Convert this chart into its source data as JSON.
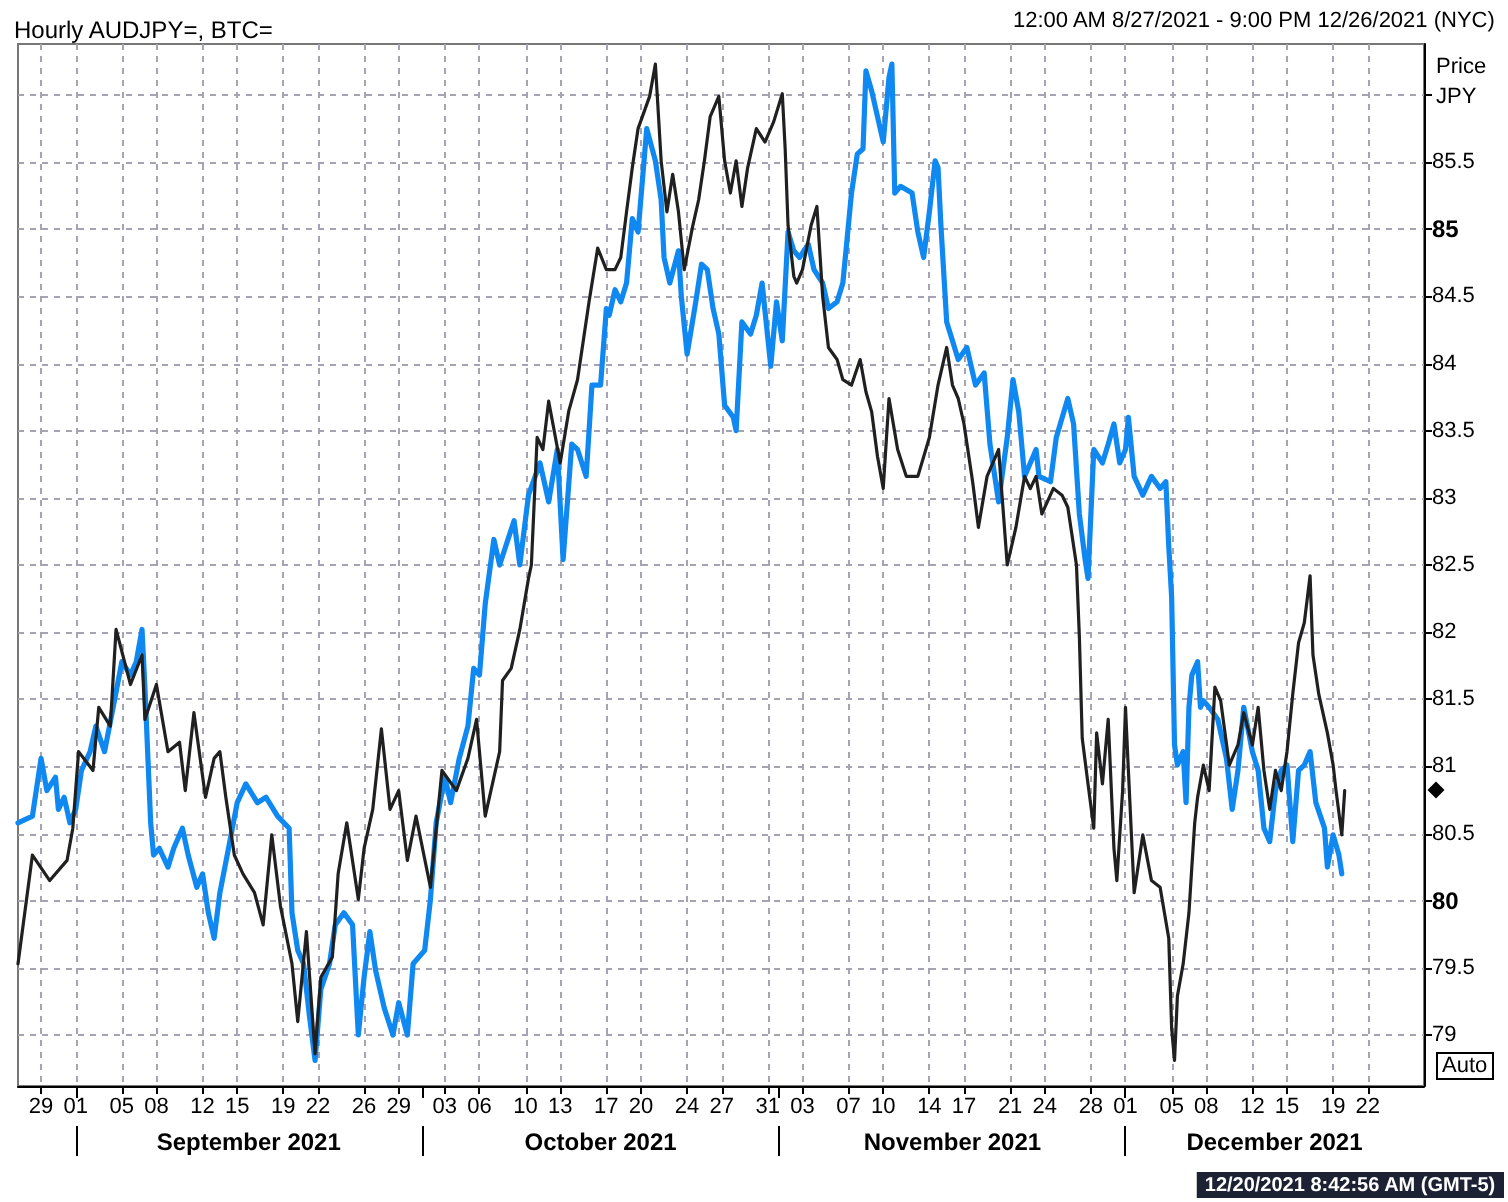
{
  "chart_data": {
    "type": "line",
    "title": "Hourly AUDJPY=, BTC=",
    "ylabel": "Price JPY",
    "annotations": [
      "12:00 AM 8/27/2021 - 9:00 PM 12/26/2021 (NYC)",
      "12/20/2021 8:42:56 AM (GMT-5)",
      "Auto"
    ],
    "xlim": [
      "2021-08-27T00:00",
      "2021-12-26T21:00"
    ],
    "xticks": [
      {
        "value": "2021-08-29",
        "label": "29"
      },
      {
        "value": "2021-09-01",
        "label": "01"
      },
      {
        "value": "2021-09-05",
        "label": "05"
      },
      {
        "value": "2021-09-08",
        "label": "08"
      },
      {
        "value": "2021-09-12",
        "label": "12"
      },
      {
        "value": "2021-09-15",
        "label": "15"
      },
      {
        "value": "2021-09-19",
        "label": "19"
      },
      {
        "value": "2021-09-22",
        "label": "22"
      },
      {
        "value": "2021-09-26",
        "label": "26"
      },
      {
        "value": "2021-09-29",
        "label": "29"
      },
      {
        "value": "2021-10-03",
        "label": "03"
      },
      {
        "value": "2021-10-06",
        "label": "06"
      },
      {
        "value": "2021-10-10",
        "label": "10"
      },
      {
        "value": "2021-10-13",
        "label": "13"
      },
      {
        "value": "2021-10-17",
        "label": "17"
      },
      {
        "value": "2021-10-20",
        "label": "20"
      },
      {
        "value": "2021-10-24",
        "label": "24"
      },
      {
        "value": "2021-10-27",
        "label": "27"
      },
      {
        "value": "2021-10-31",
        "label": "31"
      },
      {
        "value": "2021-11-03",
        "label": "03"
      },
      {
        "value": "2021-11-07",
        "label": "07"
      },
      {
        "value": "2021-11-10",
        "label": "10"
      },
      {
        "value": "2021-11-14",
        "label": "14"
      },
      {
        "value": "2021-11-17",
        "label": "17"
      },
      {
        "value": "2021-11-21",
        "label": "21"
      },
      {
        "value": "2021-11-24",
        "label": "24"
      },
      {
        "value": "2021-11-28",
        "label": "28"
      },
      {
        "value": "2021-12-01",
        "label": "01"
      },
      {
        "value": "2021-12-05",
        "label": "05"
      },
      {
        "value": "2021-12-08",
        "label": "08"
      },
      {
        "value": "2021-12-12",
        "label": "12"
      },
      {
        "value": "2021-12-15",
        "label": "15"
      },
      {
        "value": "2021-12-19",
        "label": "19"
      },
      {
        "value": "2021-12-22",
        "label": "22"
      }
    ],
    "x2lim": [
      "2021-08-27T00:00",
      "2021-12-26T21:00"
    ],
    "x2ticks": [
      {
        "value": "2021-09-01",
        "label": null
      },
      {
        "value": "2021-09-16",
        "label": "September 2021"
      },
      {
        "value": "2021-10-01",
        "label": null
      },
      {
        "value": "2021-10-16T12:00",
        "label": "October 2021"
      },
      {
        "value": "2021-11-01",
        "label": null
      },
      {
        "value": "2021-11-16",
        "label": "November 2021"
      },
      {
        "value": "2021-12-01",
        "label": null
      },
      {
        "value": "2021-12-13T22:00",
        "label": "December 2021"
      }
    ],
    "ylim": [
      78.62,
      86.38
    ],
    "yticks": [
      79,
      79.5,
      80,
      80.5,
      81,
      81.5,
      82,
      82.5,
      83,
      83.5,
      84,
      84.5,
      85,
      85.5,
      {
        "value": 86,
        "label": null
      }
    ],
    "grid": true,
    "series": [
      {
        "color": "#202020",
        "x": [
          "2021-08-27T00:00",
          "2021-08-28T06:00",
          "2021-08-29T18:00",
          "2021-08-31T06:00",
          "2021-08-31T18:00",
          "2021-09-01T06:00",
          "2021-09-02T12:00",
          "2021-09-03T00:00",
          "2021-09-04T00:00",
          "2021-09-04T12:00",
          "2021-09-05T18:00",
          "2021-09-06T18:00",
          "2021-09-07T00:00",
          "2021-09-08T00:00",
          "2021-09-09T00:00",
          "2021-09-10T00:00",
          "2021-09-10T12:00",
          "2021-09-11T06:00",
          "2021-09-12T06:00",
          "2021-09-13T00:00",
          "2021-09-13T12:00",
          "2021-09-14T00:00",
          "2021-09-14T18:00",
          "2021-09-15T12:00",
          "2021-09-16T12:00",
          "2021-09-17T06:00",
          "2021-09-18T00:00",
          "2021-09-18T18:00",
          "2021-09-19T18:00",
          "2021-09-20T06:00",
          "2021-09-21T00:00",
          "2021-09-21T18:00",
          "2021-09-22T06:00",
          "2021-09-23T06:00",
          "2021-09-23T18:00",
          "2021-09-24T12:00",
          "2021-09-25T12:00",
          "2021-09-26T00:00",
          "2021-09-26T18:00",
          "2021-09-27T12:00",
          "2021-09-28T06:00",
          "2021-09-29T00:00",
          "2021-09-29T18:00",
          "2021-09-30T12:00",
          "2021-10-01T18:00",
          "2021-10-02T18:00",
          "2021-10-04T00:00",
          "2021-10-05T00:00",
          "2021-10-05T18:00",
          "2021-10-06T12:00",
          "2021-10-07T18:00",
          "2021-10-08T00:00",
          "2021-10-08T18:00",
          "2021-10-09T12:00",
          "2021-10-10T06:00",
          "2021-10-10T12:00",
          "2021-10-11T00:00",
          "2021-10-11T12:00",
          "2021-10-12T00:00",
          "2021-10-13T00:00",
          "2021-10-13T18:00",
          "2021-10-14T12:00",
          "2021-10-15T12:00",
          "2021-10-16T06:00",
          "2021-10-17T00:00",
          "2021-10-17T18:00",
          "2021-10-18T06:00",
          "2021-10-18T18:00",
          "2021-10-19T06:00",
          "2021-10-19T18:00",
          "2021-10-20T18:00",
          "2021-10-21T06:00",
          "2021-10-21T18:00",
          "2021-10-22T06:00",
          "2021-10-22T18:00",
          "2021-10-23T06:00",
          "2021-10-23T18:00",
          "2021-10-24T12:00",
          "2021-10-25T00:00",
          "2021-10-25T12:00",
          "2021-10-26T00:00",
          "2021-10-26T18:00",
          "2021-10-27T06:00",
          "2021-10-27T18:00",
          "2021-10-28T06:00",
          "2021-10-28T18:00",
          "2021-10-29T06:00",
          "2021-10-30T00:00",
          "2021-10-30T18:00",
          "2021-10-31T12:00",
          "2021-11-01T06:00",
          "2021-11-01T12:00",
          "2021-11-01T18:00",
          "2021-11-02T06:00",
          "2021-11-02T12:00",
          "2021-11-03T00:00",
          "2021-11-03T18:00",
          "2021-11-04T06:00",
          "2021-11-04T18:00",
          "2021-11-05T06:00",
          "2021-11-06T00:00",
          "2021-11-06T12:00",
          "2021-11-07T06:00",
          "2021-11-08T00:00",
          "2021-11-08T12:00",
          "2021-11-09T00:00",
          "2021-11-09T12:00",
          "2021-11-10T00:00",
          "2021-11-10T12:00",
          "2021-11-11T06:00",
          "2021-11-12T00:00",
          "2021-11-13T00:00",
          "2021-11-14T00:00",
          "2021-11-14T18:00",
          "2021-11-15T12:00",
          "2021-11-16T00:00",
          "2021-11-16T12:00",
          "2021-11-17T00:00",
          "2021-11-17T18:00",
          "2021-11-18T06:00",
          "2021-11-19T00:00",
          "2021-11-20T00:00",
          "2021-11-20T18:00",
          "2021-11-21T12:00",
          "2021-11-22T06:00",
          "2021-11-22T18:00",
          "2021-11-23T06:00",
          "2021-11-23T18:00",
          "2021-11-24T18:00",
          "2021-11-25T12:00",
          "2021-11-26T00:00",
          "2021-11-26T18:00",
          "2021-11-27T00:00",
          "2021-11-27T06:00",
          "2021-11-27T18:00",
          "2021-11-28T06:00",
          "2021-11-28T12:00",
          "2021-11-29T00:00",
          "2021-11-29T12:00",
          "2021-11-30T00:00",
          "2021-11-30T06:00",
          "2021-11-30T18:00",
          "2021-12-01T00:00",
          "2021-12-01T06:00",
          "2021-12-01T18:00",
          "2021-12-02T12:00",
          "2021-12-03T06:00",
          "2021-12-04T00:00",
          "2021-12-04T18:00",
          "2021-12-05T00:00",
          "2021-12-05T06:00",
          "2021-12-05T12:00",
          "2021-12-06T00:00",
          "2021-12-06T12:00",
          "2021-12-06T18:00",
          "2021-12-07T00:00",
          "2021-12-07T06:00",
          "2021-12-07T18:00",
          "2021-12-08T06:00",
          "2021-12-08T18:00",
          "2021-12-09T06:00",
          "2021-12-10T00:00",
          "2021-12-10T18:00",
          "2021-12-11T06:00",
          "2021-12-12T00:00",
          "2021-12-12T12:00",
          "2021-12-13T00:00",
          "2021-12-13T12:00",
          "2021-12-14T00:00",
          "2021-12-14T12:00",
          "2021-12-15T00:00",
          "2021-12-15T12:00",
          "2021-12-16T00:00",
          "2021-12-16T12:00",
          "2021-12-17T00:00",
          "2021-12-17T06:00",
          "2021-12-17T18:00",
          "2021-12-18T12:00",
          "2021-12-19T00:00",
          "2021-12-19T06:00",
          "2021-12-19T18:00",
          "2021-12-20T00:00"
        ],
        "values": [
          79.53,
          80.34,
          80.15,
          80.3,
          80.54,
          81.11,
          80.97,
          81.44,
          81.3,
          82.02,
          81.61,
          81.83,
          81.35,
          81.61,
          81.11,
          81.18,
          80.82,
          81.4,
          80.77,
          81.06,
          81.11,
          80.78,
          80.34,
          80.2,
          80.06,
          79.82,
          80.49,
          79.96,
          79.53,
          79.1,
          79.77,
          78.86,
          79.43,
          79.58,
          80.2,
          80.58,
          80.01,
          80.39,
          80.68,
          81.28,
          80.68,
          80.82,
          80.3,
          80.63,
          80.1,
          80.97,
          80.82,
          81.06,
          81.35,
          80.63,
          81.11,
          81.64,
          81.73,
          82.02,
          82.4,
          82.5,
          83.45,
          83.36,
          83.72,
          83.26,
          83.65,
          83.88,
          84.46,
          84.86,
          84.7,
          84.7,
          84.79,
          85.13,
          85.46,
          85.75,
          85.99,
          86.23,
          85.51,
          85.13,
          85.41,
          85.13,
          84.7,
          85.03,
          85.22,
          85.51,
          85.84,
          85.99,
          85.51,
          85.27,
          85.51,
          85.17,
          85.46,
          85.75,
          85.65,
          85.8,
          86.01,
          85.6,
          85.03,
          84.65,
          84.6,
          84.7,
          85.03,
          85.17,
          84.5,
          84.12,
          84.03,
          83.88,
          83.84,
          84.03,
          83.79,
          83.64,
          83.31,
          83.07,
          83.74,
          83.36,
          83.16,
          83.16,
          83.45,
          83.84,
          84.12,
          83.84,
          83.74,
          83.55,
          83.12,
          82.78,
          83.16,
          83.36,
          82.5,
          82.78,
          83.16,
          83.07,
          83.16,
          82.88,
          83.07,
          83.02,
          82.93,
          82.5,
          81.97,
          81.21,
          80.87,
          80.54,
          81.25,
          80.87,
          81.35,
          80.39,
          80.15,
          80.82,
          81.44,
          80.97,
          80.06,
          80.49,
          80.15,
          80.1,
          79.72,
          79.05,
          78.81,
          79.29,
          79.53,
          79.91,
          80.25,
          80.58,
          80.77,
          81.01,
          80.82,
          81.59,
          81.49,
          81.01,
          81.16,
          81.4,
          81.16,
          81.44,
          80.97,
          80.68,
          80.97,
          80.82,
          81.11,
          81.54,
          81.92,
          82.07,
          82.42,
          81.83,
          81.54,
          81.25,
          81.01,
          80.82,
          80.49,
          80.82
        ]
      },
      {
        "color": "#0f88f2",
        "x": [
          "2021-08-27T00:00",
          "2021-08-28T06:00",
          "2021-08-29T00:00",
          "2021-08-29T12:00",
          "2021-08-30T06:00",
          "2021-08-30T12:00",
          "2021-08-31T00:00",
          "2021-08-31T12:00",
          "2021-09-01T00:00",
          "2021-09-01T12:00",
          "2021-09-02T06:00",
          "2021-09-02T18:00",
          "2021-09-03T12:00",
          "2021-09-04T06:00",
          "2021-09-05T00:00",
          "2021-09-05T18:00",
          "2021-09-06T06:00",
          "2021-09-06T18:00",
          "2021-09-07T00:00",
          "2021-09-07T12:00",
          "2021-09-07T18:00",
          "2021-09-08T06:00",
          "2021-09-09T00:00",
          "2021-09-09T12:00",
          "2021-09-10T06:00",
          "2021-09-10T18:00",
          "2021-09-11T12:00",
          "2021-09-12T00:00",
          "2021-09-12T12:00",
          "2021-09-13T00:00",
          "2021-09-13T12:00",
          "2021-09-14T06:00",
          "2021-09-15T00:00",
          "2021-09-15T18:00",
          "2021-09-16T18:00",
          "2021-09-17T12:00",
          "2021-09-18T12:00",
          "2021-09-19T12:00",
          "2021-09-19T18:00",
          "2021-09-20T06:00",
          "2021-09-20T18:00",
          "2021-09-21T06:00",
          "2021-09-21T18:00",
          "2021-09-22T06:00",
          "2021-09-23T00:00",
          "2021-09-23T12:00",
          "2021-09-24T06:00",
          "2021-09-25T00:00",
          "2021-09-25T12:00",
          "2021-09-26T00:00",
          "2021-09-26T12:00",
          "2021-09-27T00:00",
          "2021-09-27T18:00",
          "2021-09-28T12:00",
          "2021-09-29T00:00",
          "2021-09-29T18:00",
          "2021-09-30T06:00",
          "2021-10-01T06:00",
          "2021-10-01T18:00",
          "2021-10-02T06:00",
          "2021-10-03T00:00",
          "2021-10-03T12:00",
          "2021-10-04T06:00",
          "2021-10-05T00:00",
          "2021-10-05T12:00",
          "2021-10-06T00:00",
          "2021-10-06T12:00",
          "2021-10-07T06:00",
          "2021-10-07T18:00",
          "2021-10-09T00:00",
          "2021-10-09T12:00",
          "2021-10-10T06:00",
          "2021-10-11T06:00",
          "2021-10-12T00:00",
          "2021-10-12T18:00",
          "2021-10-13T06:00",
          "2021-10-14T00:00",
          "2021-10-14T12:00",
          "2021-10-15T06:00",
          "2021-10-15T18:00",
          "2021-10-16T12:00",
          "2021-10-17T00:00",
          "2021-10-17T06:00",
          "2021-10-17T18:00",
          "2021-10-18T06:00",
          "2021-10-18T18:00",
          "2021-10-19T06:00",
          "2021-10-19T18:00",
          "2021-10-20T12:00",
          "2021-10-21T06:00",
          "2021-10-21T18:00",
          "2021-10-22T00:00",
          "2021-10-22T12:00",
          "2021-10-23T06:00",
          "2021-10-23T12:00",
          "2021-10-24T00:00",
          "2021-10-24T18:00",
          "2021-10-25T06:00",
          "2021-10-25T18:00",
          "2021-10-26T06:00",
          "2021-10-26T18:00",
          "2021-10-27T06:00",
          "2021-10-28T00:00",
          "2021-10-28T06:00",
          "2021-10-28T18:00",
          "2021-10-29T12:00",
          "2021-10-30T00:00",
          "2021-10-30T12:00",
          "2021-10-31T06:00",
          "2021-10-31T18:00",
          "2021-11-01T06:00",
          "2021-11-01T18:00",
          "2021-11-02T06:00",
          "2021-11-02T18:00",
          "2021-11-03T12:00",
          "2021-11-04T00:00",
          "2021-11-04T18:00",
          "2021-11-05T06:00",
          "2021-11-06T00:00",
          "2021-11-06T12:00",
          "2021-11-07T06:00",
          "2021-11-07T18:00",
          "2021-11-08T06:00",
          "2021-11-08T12:00",
          "2021-11-09T00:00",
          "2021-11-09T12:00",
          "2021-11-10T00:00",
          "2021-11-10T12:00",
          "2021-11-10T18:00",
          "2021-11-11T00:00",
          "2021-11-11T12:00",
          "2021-11-12T12:00",
          "2021-11-13T00:00",
          "2021-11-13T12:00",
          "2021-11-14T00:00",
          "2021-11-14T12:00",
          "2021-11-14T18:00",
          "2021-11-15T00:00",
          "2021-11-15T12:00",
          "2021-11-16T00:00",
          "2021-11-16T12:00",
          "2021-11-17T06:00",
          "2021-11-18T00:00",
          "2021-11-18T18:00",
          "2021-11-19T06:00",
          "2021-11-20T00:00",
          "2021-11-20T18:00",
          "2021-11-21T06:00",
          "2021-11-21T18:00",
          "2021-11-22T06:00",
          "2021-11-22T18:00",
          "2021-11-23T06:00",
          "2021-11-23T12:00",
          "2021-11-24T12:00",
          "2021-11-25T00:00",
          "2021-11-26T00:00",
          "2021-11-26T12:00",
          "2021-11-27T00:00",
          "2021-11-27T12:00",
          "2021-11-27T18:00",
          "2021-11-28T06:00",
          "2021-11-29T00:00",
          "2021-11-29T12:00",
          "2021-11-30T00:00",
          "2021-11-30T12:00",
          "2021-12-01T00:00",
          "2021-12-01T06:00",
          "2021-12-01T18:00",
          "2021-12-02T12:00",
          "2021-12-03T06:00",
          "2021-12-04T00:00",
          "2021-12-04T12:00",
          "2021-12-04T18:00",
          "2021-12-05T00:00",
          "2021-12-05T06:00",
          "2021-12-05T12:00",
          "2021-12-06T00:00",
          "2021-12-06T06:00",
          "2021-12-06T12:00",
          "2021-12-06T18:00",
          "2021-12-07T06:00",
          "2021-12-07T12:00",
          "2021-12-07T18:00",
          "2021-12-08T06:00",
          "2021-12-09T00:00",
          "2021-12-09T18:00",
          "2021-12-10T06:00",
          "2021-12-10T18:00",
          "2021-12-11T06:00",
          "2021-12-12T00:00",
          "2021-12-12T12:00",
          "2021-12-13T00:00",
          "2021-12-13T12:00",
          "2021-12-14T00:00",
          "2021-12-14T12:00",
          "2021-12-15T00:00",
          "2021-12-15T12:00",
          "2021-12-16T00:00",
          "2021-12-16T12:00",
          "2021-12-17T00:00",
          "2021-12-17T12:00",
          "2021-12-18T06:00",
          "2021-12-18T12:00",
          "2021-12-19T00:00",
          "2021-12-19T12:00",
          "2021-12-19T18:00"
        ],
        "values": [
          80.58,
          80.63,
          81.06,
          80.82,
          80.92,
          80.68,
          80.77,
          80.58,
          80.68,
          80.97,
          81.11,
          81.3,
          81.11,
          81.44,
          81.78,
          81.68,
          81.78,
          82.02,
          81.59,
          80.58,
          80.34,
          80.39,
          80.25,
          80.39,
          80.54,
          80.34,
          80.1,
          80.2,
          79.91,
          79.72,
          80.06,
          80.39,
          80.73,
          80.87,
          80.73,
          80.77,
          80.63,
          80.54,
          79.91,
          79.63,
          79.53,
          79.15,
          78.81,
          79.34,
          79.53,
          79.82,
          79.91,
          79.82,
          79.0,
          79.43,
          79.77,
          79.48,
          79.2,
          79.0,
          79.24,
          79.0,
          79.53,
          79.63,
          80.01,
          80.58,
          80.92,
          80.73,
          81.06,
          81.3,
          81.73,
          81.68,
          82.21,
          82.69,
          82.5,
          82.83,
          82.5,
          83.02,
          83.26,
          82.97,
          83.36,
          82.54,
          83.4,
          83.36,
          83.16,
          83.84,
          83.84,
          84.41,
          84.36,
          84.55,
          84.46,
          84.6,
          85.08,
          84.98,
          85.75,
          85.51,
          85.22,
          84.79,
          84.6,
          84.84,
          84.5,
          84.07,
          84.46,
          84.74,
          84.7,
          84.41,
          84.22,
          83.69,
          83.6,
          83.5,
          84.31,
          84.22,
          84.36,
          84.6,
          83.98,
          84.46,
          84.17,
          84.98,
          84.84,
          84.79,
          84.89,
          84.7,
          84.6,
          84.41,
          84.46,
          84.6,
          85.27,
          85.56,
          85.6,
          86.18,
          86.03,
          85.84,
          85.65,
          86.13,
          86.23,
          85.27,
          85.32,
          85.27,
          84.98,
          84.79,
          85.13,
          85.51,
          85.46,
          85.03,
          84.31,
          84.17,
          84.03,
          84.12,
          83.84,
          83.93,
          83.4,
          82.97,
          83.45,
          83.88,
          83.64,
          83.16,
          83.26,
          83.36,
          83.16,
          83.12,
          83.45,
          83.74,
          83.55,
          82.88,
          82.54,
          82.4,
          83.36,
          83.26,
          83.4,
          83.55,
          83.26,
          83.36,
          83.6,
          83.16,
          83.02,
          83.16,
          83.07,
          83.12,
          82.64,
          82.26,
          81.16,
          81.01,
          81.11,
          80.73,
          81.44,
          81.68,
          81.78,
          81.44,
          81.49,
          81.44,
          81.35,
          81.06,
          80.68,
          80.97,
          81.44,
          81.11,
          80.97,
          80.54,
          80.44,
          80.82,
          80.97,
          81.01,
          80.44,
          80.97,
          81.01,
          81.11,
          80.73,
          80.54,
          80.25,
          80.49,
          80.34,
          80.2
        ]
      }
    ]
  }
}
